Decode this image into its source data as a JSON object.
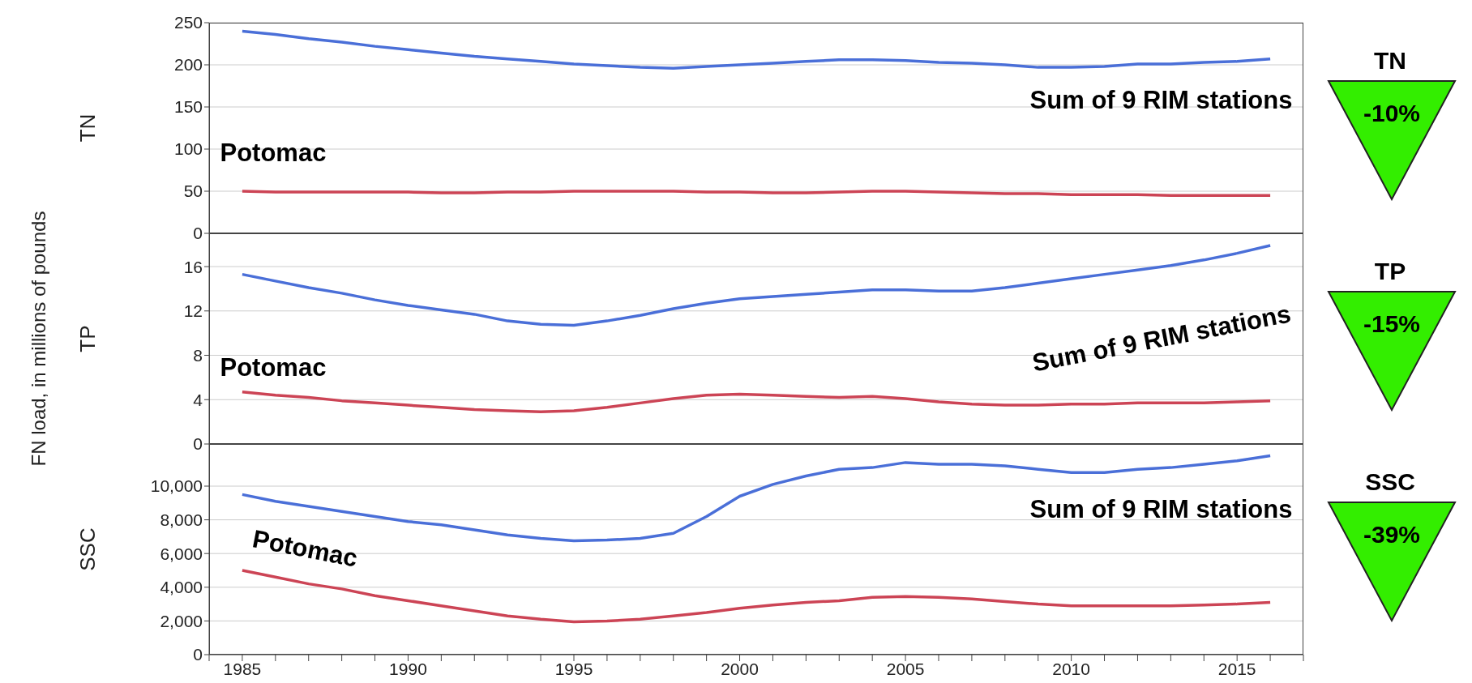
{
  "chart_data": [
    {
      "type": "line",
      "ylabel": "TN",
      "x": [
        1985,
        1986,
        1987,
        1988,
        1989,
        1990,
        1991,
        1992,
        1993,
        1994,
        1995,
        1996,
        1997,
        1998,
        1999,
        2000,
        2001,
        2002,
        2003,
        2004,
        2005,
        2006,
        2007,
        2008,
        2009,
        2010,
        2011,
        2012,
        2013,
        2014,
        2015,
        2016
      ],
      "xlim": [
        1984,
        2017
      ],
      "xticks": [
        1985,
        1990,
        1995,
        2000,
        2005,
        2010,
        2015
      ],
      "ylim": [
        0,
        250
      ],
      "yticks": [
        0,
        50,
        100,
        150,
        200,
        250
      ],
      "grid": "y",
      "tick_labels": "y",
      "marker": "none",
      "annotations": [
        "TN",
        "-10%"
      ],
      "series": [
        {
          "name": "Sum of 9 RIM stations",
          "color": "#4a6fd8",
          "values": [
            240,
            236,
            231,
            227,
            222,
            218,
            214,
            210,
            207,
            204,
            201,
            199,
            197,
            196,
            198,
            200,
            202,
            204,
            206,
            206,
            205,
            203,
            202,
            200,
            197,
            197,
            198,
            201,
            201,
            203,
            204,
            207
          ]
        },
        {
          "name": "Potomac",
          "color": "#cc4455",
          "values": [
            50,
            49,
            49,
            49,
            49,
            49,
            48,
            48,
            49,
            49,
            50,
            50,
            50,
            50,
            49,
            49,
            48,
            48,
            49,
            50,
            50,
            49,
            48,
            47,
            47,
            46,
            46,
            46,
            45,
            45,
            45,
            45
          ]
        }
      ]
    },
    {
      "type": "line",
      "ylabel": "TP",
      "x": [
        1985,
        1986,
        1987,
        1988,
        1989,
        1990,
        1991,
        1992,
        1993,
        1994,
        1995,
        1996,
        1997,
        1998,
        1999,
        2000,
        2001,
        2002,
        2003,
        2004,
        2005,
        2006,
        2007,
        2008,
        2009,
        2010,
        2011,
        2012,
        2013,
        2014,
        2015,
        2016
      ],
      "xlim": [
        1984,
        2017
      ],
      "xticks": [
        1985,
        1990,
        1995,
        2000,
        2005,
        2010,
        2015
      ],
      "ylim": [
        0,
        19
      ],
      "yticks": [
        0,
        4,
        8,
        12,
        16
      ],
      "grid": "y",
      "tick_labels": "y",
      "marker": "none",
      "annotations": [
        "TP",
        "-15%",
        "FN load, in millions of pounds"
      ],
      "series": [
        {
          "name": "Sum of 9 RIM stations",
          "color": "#4a6fd8",
          "values": [
            15.3,
            14.7,
            14.1,
            13.6,
            13.0,
            12.5,
            12.1,
            11.7,
            11.1,
            10.8,
            10.7,
            11.1,
            11.6,
            12.2,
            12.7,
            13.1,
            13.3,
            13.5,
            13.7,
            13.9,
            13.9,
            13.8,
            13.8,
            14.1,
            14.5,
            14.9,
            15.3,
            15.7,
            16.1,
            16.6,
            17.2,
            17.9
          ]
        },
        {
          "name": "Potomac",
          "color": "#cc4455",
          "values": [
            4.7,
            4.4,
            4.2,
            3.9,
            3.7,
            3.5,
            3.3,
            3.1,
            3.0,
            2.9,
            3.0,
            3.3,
            3.7,
            4.1,
            4.4,
            4.5,
            4.4,
            4.3,
            4.2,
            4.3,
            4.1,
            3.8,
            3.6,
            3.5,
            3.5,
            3.6,
            3.6,
            3.7,
            3.7,
            3.7,
            3.8,
            3.9
          ]
        }
      ]
    },
    {
      "type": "line",
      "ylabel": "SSC",
      "x": [
        1985,
        1986,
        1987,
        1988,
        1989,
        1990,
        1991,
        1992,
        1993,
        1994,
        1995,
        1996,
        1997,
        1998,
        1999,
        2000,
        2001,
        2002,
        2003,
        2004,
        2005,
        2006,
        2007,
        2008,
        2009,
        2010,
        2011,
        2012,
        2013,
        2014,
        2015,
        2016
      ],
      "xlim": [
        1984,
        2017
      ],
      "xticks": [
        1985,
        1990,
        1995,
        2000,
        2005,
        2010,
        2015
      ],
      "ylim": [
        0,
        12500
      ],
      "yticks": [
        0,
        {
          "value": 2000,
          "label": "2,000"
        },
        {
          "value": 4000,
          "label": "4,000"
        },
        {
          "value": 6000,
          "label": "6,000"
        },
        {
          "value": 8000,
          "label": "8,000"
        },
        {
          "value": 10000,
          "label": "10,000"
        }
      ],
      "grid": "y",
      "marker": "none",
      "annotations": [
        "SSC",
        "-39%"
      ],
      "series": [
        {
          "name": "Sum of 9 RIM stations",
          "color": "#4a6fd8",
          "values": [
            9500,
            9100,
            8800,
            8500,
            8200,
            7900,
            7700,
            7400,
            7100,
            6900,
            6750,
            6800,
            6900,
            7200,
            8200,
            9400,
            10100,
            10600,
            11000,
            11100,
            11400,
            11300,
            11300,
            11200,
            11000,
            10800,
            10800,
            11000,
            11100,
            11300,
            11500,
            11800
          ]
        },
        {
          "name": "Potomac",
          "color": "#cc4455",
          "values": [
            5000,
            4600,
            4200,
            3900,
            3500,
            3200,
            2900,
            2600,
            2300,
            2100,
            1950,
            2000,
            2100,
            2300,
            2500,
            2750,
            2950,
            3100,
            3200,
            3400,
            3450,
            3400,
            3300,
            3150,
            3000,
            2900,
            2900,
            2900,
            2900,
            2950,
            3000,
            3100
          ]
        }
      ]
    }
  ]
}
